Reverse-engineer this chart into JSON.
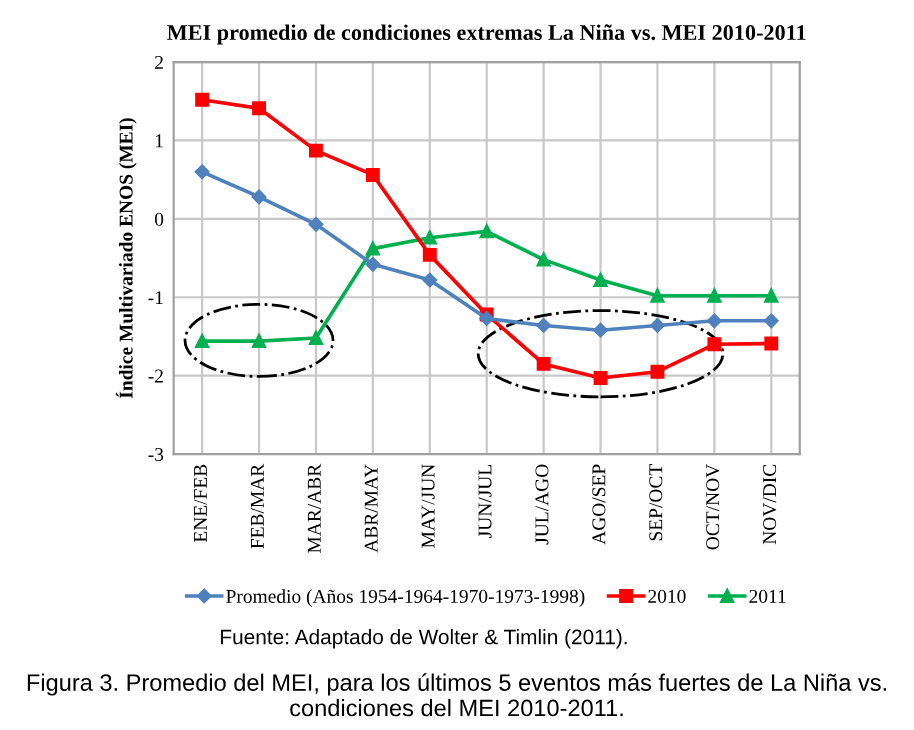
{
  "chart_data": {
    "type": "line",
    "title": "MEI promedio de condiciones extremas La Niña vs. MEI 2010-2011",
    "ylabel": "Índice Multivariado ENOS (MEI)",
    "categories": [
      "ENE/FEB",
      "FEB/MAR",
      "MAR/ABR",
      "ABR/MAY",
      "MAY/JUN",
      "JUN/JUL",
      "JUL/AGO",
      "AGO/SEP",
      "SEP/OCT",
      "OCT/NOV",
      "NOV/DIC"
    ],
    "series": [
      {
        "name": "Promedio (Años 1954-1964-1970-1973-1998)",
        "color": "#4f81bd",
        "marker": "diamond",
        "values": [
          0.6,
          0.28,
          -0.07,
          -0.58,
          -0.78,
          -1.27,
          -1.36,
          -1.42,
          -1.36,
          -1.3,
          -1.3
        ]
      },
      {
        "name": "2010",
        "color": "#ff0000",
        "marker": "square",
        "values": [
          1.52,
          1.41,
          0.87,
          0.56,
          -0.46,
          -1.22,
          -1.85,
          -2.03,
          -1.95,
          -1.6,
          -1.59
        ]
      },
      {
        "name": "2011",
        "color": "#00b050",
        "marker": "triangle",
        "values": [
          -1.56,
          -1.56,
          -1.52,
          -0.38,
          -0.24,
          -0.16,
          -0.52,
          -0.78,
          -0.98,
          -0.98,
          -0.98
        ]
      }
    ],
    "ylim": [
      -3,
      2
    ],
    "yticks": [
      -3,
      -2,
      -1,
      0,
      1,
      2
    ],
    "grid": true,
    "legend": "bottom",
    "line_style": "solid",
    "annotations": [
      "Fuente: Adaptado de Wolter & Timlin (2011).",
      "Figura 3. Promedio del MEI, para los últimos 5 eventos más fuertes de La Niña vs. condiciones del MEI 2010-2011."
    ]
  }
}
